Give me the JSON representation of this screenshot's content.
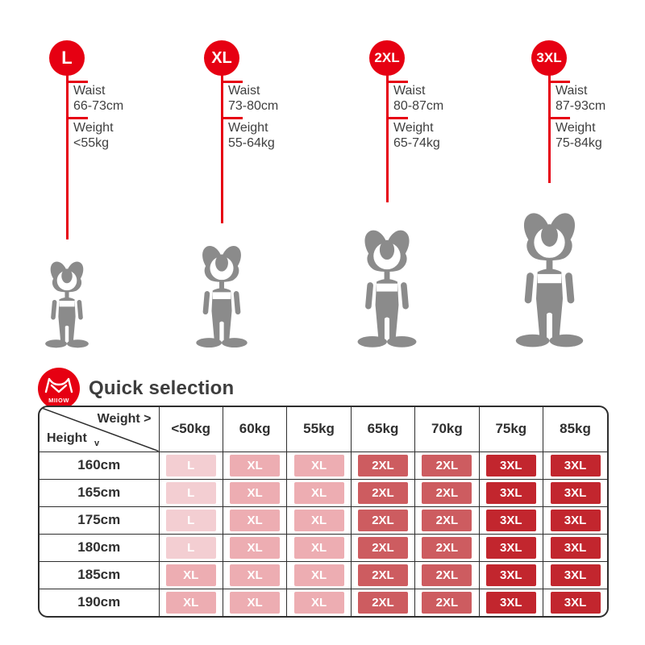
{
  "colors": {
    "accent_red": "#e60012",
    "figure_gray": "#8b8b8b",
    "table_border": "#2e2e2e",
    "size_chip_colors": {
      "L": "#f3ced2",
      "XL": "#edadb2",
      "2XL": "#cd5c60",
      "3XL": "#c2262e"
    }
  },
  "brand": {
    "logo_text": "MIIOW"
  },
  "sizes": [
    {
      "label": "L",
      "waist_label": "Waist",
      "waist_value": "66-73cm",
      "weight_label": "Weight",
      "weight_value": "<55kg"
    },
    {
      "label": "XL",
      "waist_label": "Waist",
      "waist_value": "73-80cm",
      "weight_label": "Weight",
      "weight_value": "55-64kg"
    },
    {
      "label": "2XL",
      "waist_label": "Waist",
      "waist_value": "80-87cm",
      "weight_label": "Weight",
      "weight_value": "65-74kg"
    },
    {
      "label": "3XL",
      "waist_label": "Waist",
      "waist_value": "87-93cm",
      "weight_label": "Weight",
      "weight_value": "75-84kg"
    }
  ],
  "quick_selection": {
    "title": "Quick selection",
    "corner_weight": "Weight >",
    "corner_height": "Height",
    "corner_height_arrow": "v",
    "weight_columns": [
      "<50kg",
      "60kg",
      "55kg",
      "65kg",
      "70kg",
      "75kg",
      "85kg"
    ],
    "rows": [
      {
        "height": "160cm",
        "cells": [
          "L",
          "XL",
          "XL",
          "2XL",
          "2XL",
          "3XL",
          "3XL"
        ]
      },
      {
        "height": "165cm",
        "cells": [
          "L",
          "XL",
          "XL",
          "2XL",
          "2XL",
          "3XL",
          "3XL"
        ]
      },
      {
        "height": "175cm",
        "cells": [
          "L",
          "XL",
          "XL",
          "2XL",
          "2XL",
          "3XL",
          "3XL"
        ]
      },
      {
        "height": "180cm",
        "cells": [
          "L",
          "XL",
          "XL",
          "2XL",
          "2XL",
          "3XL",
          "3XL"
        ]
      },
      {
        "height": "185cm",
        "cells": [
          "XL",
          "XL",
          "XL",
          "2XL",
          "2XL",
          "3XL",
          "3XL"
        ]
      },
      {
        "height": "190cm",
        "cells": [
          "XL",
          "XL",
          "XL",
          "2XL",
          "2XL",
          "3XL",
          "3XL"
        ]
      }
    ]
  }
}
